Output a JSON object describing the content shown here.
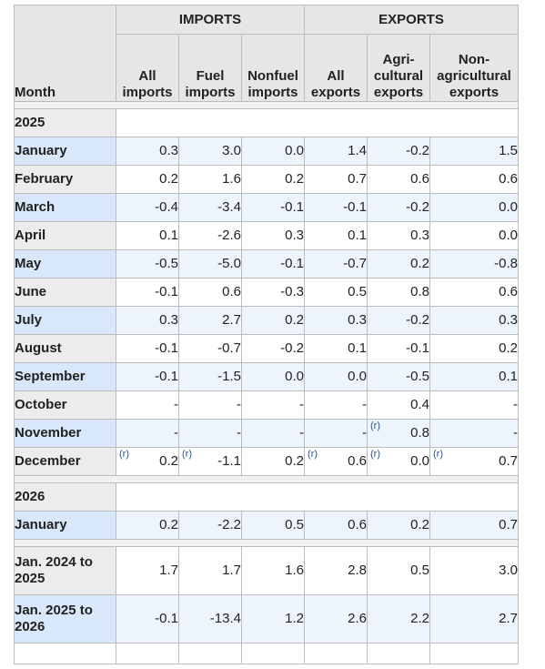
{
  "header": {
    "month": "Month",
    "imports": "IMPORTS",
    "exports": "EXPORTS",
    "columns": [
      [
        "All",
        "imports"
      ],
      [
        "Fuel",
        "imports"
      ],
      [
        "Nonfuel",
        "imports"
      ],
      [
        "All",
        "exports"
      ],
      [
        "Agri-",
        "cultural",
        "exports"
      ],
      [
        "Non-",
        "agricultural",
        "exports"
      ]
    ]
  },
  "footnote_marker": "(r)",
  "blocks": [
    {
      "year": "2025",
      "rows": [
        {
          "month": "January",
          "values": [
            "0.3",
            "3.0",
            "0.0",
            "1.4",
            "-0.2",
            "1.5"
          ]
        },
        {
          "month": "February",
          "values": [
            "0.2",
            "1.6",
            "0.2",
            "0.7",
            "0.6",
            "0.6"
          ]
        },
        {
          "month": "March",
          "values": [
            "-0.4",
            "-3.4",
            "-0.1",
            "-0.1",
            "-0.2",
            "0.0"
          ]
        },
        {
          "month": "April",
          "values": [
            "0.1",
            "-2.6",
            "0.3",
            "0.1",
            "0.3",
            "0.0"
          ]
        },
        {
          "month": "May",
          "values": [
            "-0.5",
            "-5.0",
            "-0.1",
            "-0.7",
            "0.2",
            "-0.8"
          ]
        },
        {
          "month": "June",
          "values": [
            "-0.1",
            "0.6",
            "-0.3",
            "0.5",
            "0.8",
            "0.6"
          ]
        },
        {
          "month": "July",
          "values": [
            "0.3",
            "2.7",
            "0.2",
            "0.3",
            "-0.2",
            "0.3"
          ]
        },
        {
          "month": "August",
          "values": [
            "-0.1",
            "-0.7",
            "-0.2",
            "0.1",
            "-0.1",
            "0.2"
          ]
        },
        {
          "month": "September",
          "values": [
            "-0.1",
            "-1.5",
            "0.0",
            "0.0",
            "-0.5",
            "0.1"
          ]
        },
        {
          "month": "October",
          "values": [
            "-",
            "-",
            "-",
            "-",
            "0.4",
            "-"
          ]
        },
        {
          "month": "November",
          "values": [
            "-",
            "-",
            "-",
            "-",
            "0.8",
            "-"
          ],
          "revised": [
            false,
            false,
            false,
            false,
            true,
            false
          ]
        },
        {
          "month": "December",
          "values": [
            "0.2",
            "-1.1",
            "0.2",
            "0.6",
            "0.0",
            "0.7"
          ],
          "revised": [
            true,
            true,
            false,
            true,
            true,
            true
          ]
        }
      ]
    },
    {
      "year": "2026",
      "rows": [
        {
          "month": "January",
          "values": [
            "0.2",
            "-2.2",
            "0.5",
            "0.6",
            "0.2",
            "0.7"
          ]
        }
      ]
    }
  ],
  "ranges": [
    {
      "label": [
        "Jan. 2024 to",
        "2025"
      ],
      "values": [
        "1.7",
        "1.7",
        "1.6",
        "2.8",
        "0.5",
        "3.0"
      ]
    },
    {
      "label": [
        "Jan. 2025 to",
        "2026"
      ],
      "values": [
        "-0.1",
        "-13.4",
        "1.2",
        "2.6",
        "2.2",
        "2.7"
      ]
    }
  ]
}
